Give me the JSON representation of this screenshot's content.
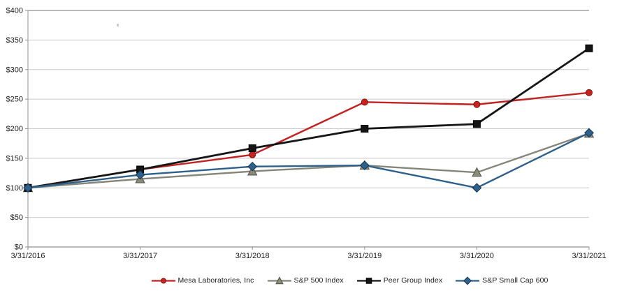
{
  "chart_data": {
    "type": "line",
    "x_labels": [
      "3/31/2016",
      "3/31/2017",
      "3/31/2018",
      "3/31/2019",
      "3/31/2020",
      "3/31/2021"
    ],
    "y_tick_labels": [
      "$0",
      "$50",
      "$100",
      "$150",
      "$200",
      "$250",
      "$300",
      "$350",
      "$400"
    ],
    "ylim": [
      0,
      400
    ],
    "y_tick_step": 50,
    "grid": "horizontal",
    "legend_position": "bottom",
    "series": [
      {
        "name": "Mesa Laboratories, Inc",
        "marker": "circle",
        "color": "#c02321",
        "marker_fill": "#c8221f",
        "marker_stroke": "#7a1311",
        "values": [
          100,
          131,
          156,
          245,
          241,
          261
        ]
      },
      {
        "name": "S&P 500 Index",
        "marker": "triangle",
        "color": "#85857a",
        "marker_fill": "#8c8c7c",
        "marker_stroke": "#4f4f41",
        "values": [
          100,
          115,
          128,
          138,
          126,
          192
        ]
      },
      {
        "name": "Peer Group Index",
        "marker": "square",
        "color": "#161616",
        "marker_fill": "#141414",
        "marker_stroke": "#000000",
        "values": [
          100,
          131,
          167,
          200,
          208,
          336
        ]
      },
      {
        "name": "S&P Small Cap 600",
        "marker": "diamond",
        "color": "#2e608c",
        "marker_fill": "#2e608c",
        "marker_stroke": "#14344f",
        "values": [
          100,
          122,
          136,
          138,
          100,
          193
        ]
      }
    ]
  },
  "colors": {
    "background": "#ffffff",
    "gridline": "#c9c9c9",
    "boundary_line": "#a2a2a2",
    "tick": "#8f8f8f",
    "text": "#1c1c1c"
  }
}
